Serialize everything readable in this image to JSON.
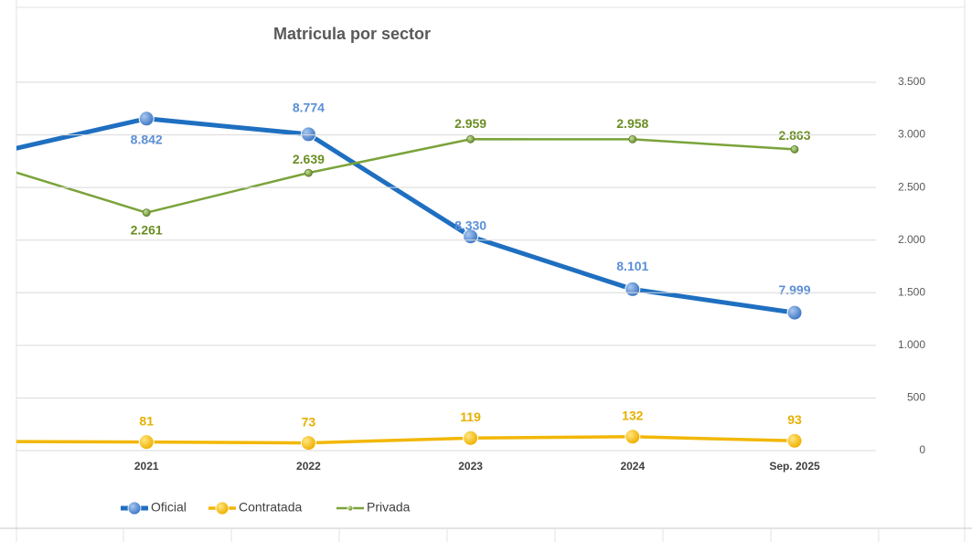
{
  "chart_data": {
    "type": "line",
    "title": "Matricula por sector",
    "categories": [
      null,
      "2021",
      "2022",
      "2023",
      "2024",
      "Sep. 2025"
    ],
    "ylim": [
      7400,
      9000
    ],
    "y2lim": [
      0,
      3500
    ],
    "y2ticks": [
      0,
      500,
      {
        "value": 1000,
        "label": "1.000"
      },
      {
        "value": 1500,
        "label": "1.500"
      },
      {
        "value": 2000,
        "label": "2.000"
      },
      {
        "value": 2500,
        "label": "2.500"
      },
      {
        "value": 3000,
        "label": "3.000"
      },
      {
        "value": 3500,
        "label": "3.500"
      }
    ],
    "grid": true,
    "legend": "bottom-left",
    "series": [
      {
        "name": "Oficial",
        "color": "#1f6fc1",
        "values": [
          8682,
          8842,
          8774,
          8330,
          8101,
          7999
        ],
        "value_labels": [
          null,
          "8.842",
          "8.774",
          "8.330",
          "8.101",
          "7.999"
        ]
      },
      {
        "name": "Contratada",
        "color": "#f2b705",
        "axis": "y2",
        "values": [
          87,
          81,
          73,
          119,
          132,
          93
        ]
      },
      {
        "name": "Privada",
        "color": "#7aa33a",
        "axis": "y2",
        "values": [
          2736,
          2261,
          2639,
          2959,
          2958,
          2863
        ],
        "value_labels": [
          null,
          "2.261",
          "2.639",
          "2.959",
          "2.958",
          "2.863"
        ]
      }
    ]
  }
}
